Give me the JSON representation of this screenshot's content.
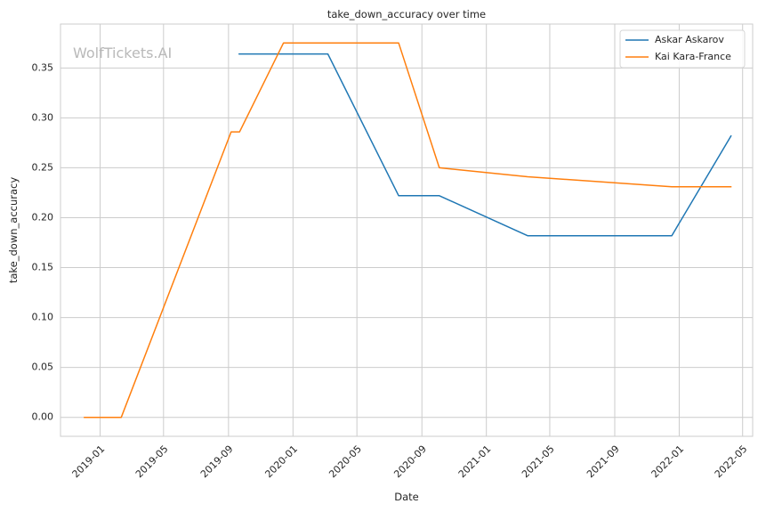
{
  "chart_data": {
    "type": "line",
    "title": "take_down_accuracy over time",
    "xlabel": "Date",
    "ylabel": "take_down_accuracy",
    "watermark": "WolfTickets.AI",
    "x_axis_type": "date",
    "xlim": [
      "2018-10-18",
      "2022-05-20"
    ],
    "ylim": [
      -0.019,
      0.394
    ],
    "x_ticks": [
      "2019-01-01",
      "2019-05-01",
      "2019-09-01",
      "2020-01-01",
      "2020-05-01",
      "2020-09-01",
      "2021-01-01",
      "2021-05-01",
      "2021-09-01",
      "2022-01-01",
      "2022-05-01"
    ],
    "x_tick_labels": [
      "2019-01",
      "2019-05",
      "2019-09",
      "2020-01",
      "2020-05",
      "2020-09",
      "2021-01",
      "2021-05",
      "2021-09",
      "2022-01",
      "2022-05"
    ],
    "y_ticks": [
      0.0,
      0.05,
      0.1,
      0.15,
      0.2,
      0.25,
      0.3,
      0.35
    ],
    "y_tick_labels": [
      "0.00",
      "0.05",
      "0.10",
      "0.15",
      "0.20",
      "0.25",
      "0.30",
      "0.35"
    ],
    "grid": true,
    "legend_position": "top-right",
    "series": [
      {
        "name": "Askar Askarov",
        "color": "#1f77b4",
        "points": [
          {
            "x": "2019-09-21",
            "y": 0.364
          },
          {
            "x": "2020-03-07",
            "y": 0.364
          },
          {
            "x": "2020-07-19",
            "y": 0.222
          },
          {
            "x": "2020-10-04",
            "y": 0.222
          },
          {
            "x": "2021-03-20",
            "y": 0.182
          },
          {
            "x": "2021-12-18",
            "y": 0.182
          },
          {
            "x": "2022-04-09",
            "y": 0.282
          }
        ]
      },
      {
        "name": "Kai Kara-France",
        "color": "#ff7f0e",
        "points": [
          {
            "x": "2018-12-02",
            "y": 0.0
          },
          {
            "x": "2019-02-10",
            "y": 0.0
          },
          {
            "x": "2019-09-06",
            "y": 0.286
          },
          {
            "x": "2019-09-22",
            "y": 0.286
          },
          {
            "x": "2019-12-14",
            "y": 0.375
          },
          {
            "x": "2020-07-19",
            "y": 0.375
          },
          {
            "x": "2020-10-04",
            "y": 0.25
          },
          {
            "x": "2021-03-20",
            "y": 0.241
          },
          {
            "x": "2021-12-18",
            "y": 0.231
          },
          {
            "x": "2022-04-09",
            "y": 0.231
          }
        ]
      }
    ]
  }
}
